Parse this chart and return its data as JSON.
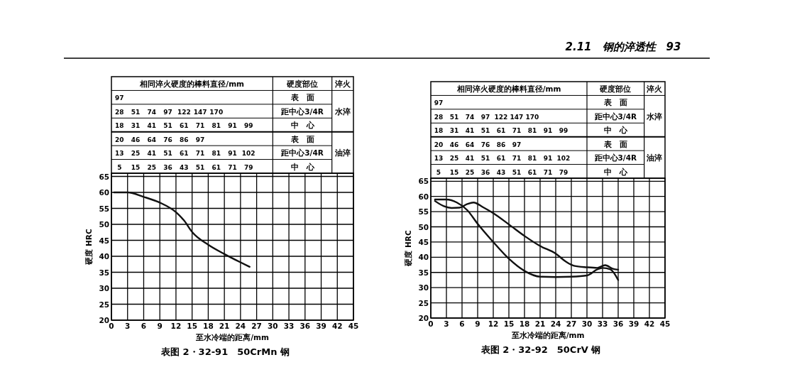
{
  "chart_data": [
    {
      "type": "line",
      "title": "表图 2・32-91　50CrMn 钢",
      "xlabel": "至水冷端的距离/mm",
      "ylabel": "硬度 HRC",
      "xlim": [
        0,
        45
      ],
      "xticks": [
        0,
        3,
        6,
        9,
        12,
        15,
        18,
        21,
        24,
        27,
        30,
        33,
        36,
        39,
        42,
        45
      ],
      "ylim": [
        20,
        66
      ],
      "yticks": [
        20,
        25,
        30,
        35,
        40,
        45,
        50,
        55,
        60,
        65
      ],
      "grid": true,
      "marker": "none",
      "line_style": "solid",
      "series": [
        {
          "color": "#111111",
          "x": [
            0.5,
            3,
            6,
            9,
            12,
            13.5,
            15,
            18,
            21,
            24,
            25.7
          ],
          "values": [
            60,
            60,
            58.6,
            56.8,
            53.8,
            51.2,
            47.6,
            43.6,
            40.7,
            38.1,
            36.7
          ]
        }
      ],
      "annotations": [
        "相同淬火硬度的棒料直径/mm",
        "硬度部位",
        "淬火",
        "97",
        "表　面",
        "28 51 74 97 122 147 170",
        "距中心3/4R",
        "18 31 41 51 61 71 81 91 99",
        "中　心",
        "水淬",
        "20 46 64 76 86 97",
        "表　面",
        "13 25 41 51 61 71 81 91 102",
        "距中心3/4R",
        "5 15 25 36 43 51 61 71 79",
        "中　心",
        "油淬",
        "2.11　钢的淬透性　93"
      ]
    },
    {
      "type": "line",
      "title": "表图 2・32-92　50CrV 钢",
      "xlabel": "至水冷端的距离/mm",
      "ylabel": "硬度 HRC",
      "xlim": [
        0,
        45
      ],
      "xticks": [
        0,
        3,
        6,
        9,
        12,
        15,
        18,
        21,
        24,
        27,
        30,
        33,
        36,
        39,
        42,
        45
      ],
      "ylim": [
        20,
        66
      ],
      "yticks": [
        20,
        25,
        30,
        35,
        40,
        45,
        50,
        55,
        60,
        65
      ],
      "grid": true,
      "marker": "none",
      "line_style": "solid",
      "series": [
        {
          "color": "#111111",
          "x": [
            0.8,
            2.5,
            4,
            5.5,
            7,
            8.2,
            10,
            12,
            15,
            18,
            21,
            24,
            26,
            27.5,
            30,
            32,
            33.5,
            35,
            36
          ],
          "values": [
            58.5,
            56.8,
            56.2,
            56.3,
            57.5,
            58,
            56.5,
            54.5,
            50.8,
            47,
            43.7,
            41.2,
            38.5,
            37.2,
            36.7,
            36.5,
            37.4,
            36.2,
            35.9
          ]
        },
        {
          "color": "#111111",
          "x": [
            0.8,
            3,
            5,
            7,
            9,
            12,
            15,
            18,
            21,
            24,
            27,
            30,
            32,
            33,
            34.5,
            36
          ],
          "values": [
            59,
            59,
            58,
            55.5,
            51,
            45,
            39.5,
            35.5,
            33.6,
            33.5,
            33.6,
            34,
            36,
            36.5,
            36,
            32.5
          ]
        }
      ],
      "annotations": [
        "相同淬火硬度的棒料直径/mm",
        "硬度部位",
        "淬火",
        "97",
        "表　面",
        "28 51 74 97 122 147 170",
        "距中心3/4R",
        "18 31 41 51 61 71 81 91 99",
        "中　心",
        "水淬",
        "20 46 64 76 86 97",
        "表　面",
        "13 25 41 51 61 71 81 91 102",
        "距中心3/4R",
        "5 15 25 36 43 51 61 71 79",
        "中　心",
        "油淬"
      ]
    }
  ]
}
